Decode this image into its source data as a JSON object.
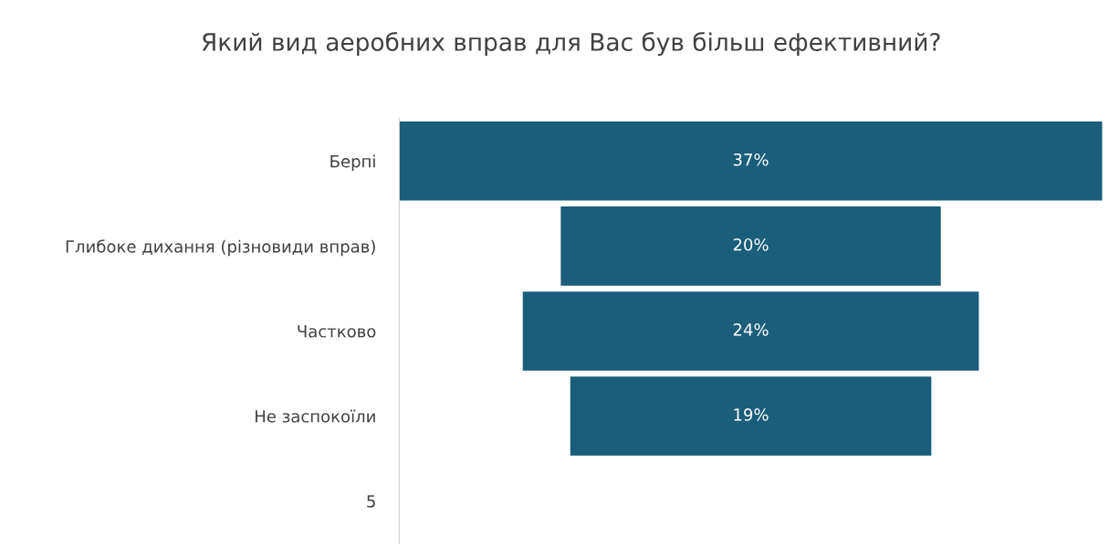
{
  "chart_data": {
    "type": "other",
    "title": "Який вид аеробних вправ для Вас був більш ефективний?",
    "categories": [
      "Берпі",
      "Глибоке дихання (різновиди вправ)",
      "Частково",
      "Не заспокоїли",
      "5"
    ],
    "values": [
      37,
      20,
      24,
      19,
      null
    ],
    "value_labels": [
      "37%",
      "20%",
      "24%",
      "19%",
      null
    ],
    "color": "#1b5e7b"
  }
}
